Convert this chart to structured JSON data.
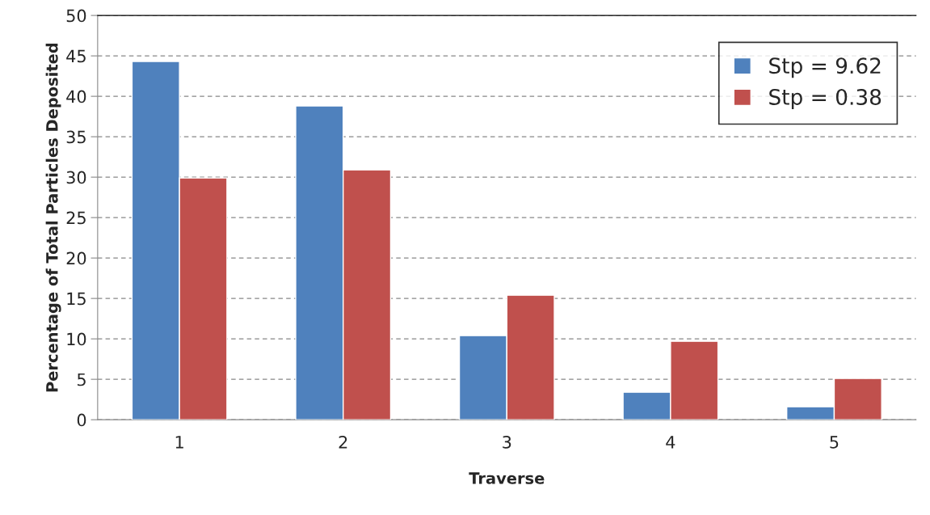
{
  "chart_data": {
    "type": "bar",
    "xlabel": "Traverse",
    "ylabel": "Percentage of Total Particles Deposited",
    "categories": [
      "1",
      "2",
      "3",
      "4",
      "5"
    ],
    "series": [
      {
        "name": "Stp = 9.62",
        "color": "#4f81bd",
        "values": [
          44.3,
          38.8,
          10.4,
          3.4,
          1.6
        ]
      },
      {
        "name": "Stp = 0.38",
        "color": "#c0504d",
        "values": [
          29.9,
          30.9,
          15.4,
          9.7,
          5.1
        ]
      }
    ],
    "ylim": [
      0,
      50
    ],
    "yticks": [
      0,
      5,
      10,
      15,
      20,
      25,
      30,
      35,
      40,
      45,
      50
    ],
    "grid": "y",
    "legend": "top right"
  }
}
